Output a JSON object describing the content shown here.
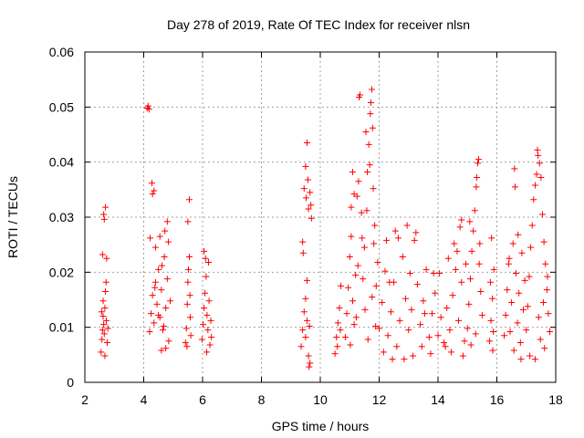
{
  "chart_data": {
    "type": "scatter",
    "title": "Day 278 of 2019, Rate Of TEC Index for receiver nlsn",
    "xlabel": "GPS time / hours",
    "ylabel": "ROTI / TECUs",
    "xlim": [
      2,
      18
    ],
    "ylim": [
      0,
      0.06
    ],
    "xticks": [
      2,
      4,
      6,
      8,
      10,
      12,
      14,
      16,
      18
    ],
    "yticks": [
      0,
      0.01,
      0.02,
      0.03,
      0.04,
      0.05,
      0.06
    ],
    "xtick_labels": [
      "2",
      "4",
      "6",
      "8",
      "10",
      "12",
      "14",
      "16",
      "18"
    ],
    "ytick_labels": [
      "0",
      "0.01",
      "0.02",
      "0.03",
      "0.04",
      "0.05",
      "0.06"
    ],
    "grid": true,
    "marker": "+",
    "marker_color": "#ff0000",
    "series": [
      {
        "name": "ROTI",
        "points": [
          [
            2.55,
            0.0055
          ],
          [
            2.58,
            0.0078
          ],
          [
            2.6,
            0.0095
          ],
          [
            2.62,
            0.012
          ],
          [
            2.64,
            0.0105
          ],
          [
            2.66,
            0.0088
          ],
          [
            2.68,
            0.0135
          ],
          [
            2.7,
            0.0165
          ],
          [
            2.72,
            0.0182
          ],
          [
            2.6,
            0.0232
          ],
          [
            2.64,
            0.0305
          ],
          [
            2.66,
            0.0296
          ],
          [
            2.7,
            0.0318
          ],
          [
            2.74,
            0.0225
          ],
          [
            2.76,
            0.0072
          ],
          [
            2.78,
            0.0098
          ],
          [
            2.62,
            0.0148
          ],
          [
            2.68,
            0.0048
          ],
          [
            2.73,
            0.0112
          ],
          [
            2.57,
            0.0128
          ],
          [
            4.12,
            0.0498
          ],
          [
            4.15,
            0.0502
          ],
          [
            4.18,
            0.0496
          ],
          [
            4.2,
            0.0092
          ],
          [
            4.25,
            0.0125
          ],
          [
            4.3,
            0.0158
          ],
          [
            4.35,
            0.0108
          ],
          [
            4.4,
            0.0182
          ],
          [
            4.45,
            0.0142
          ],
          [
            4.5,
            0.0205
          ],
          [
            4.55,
            0.0118
          ],
          [
            4.6,
            0.0168
          ],
          [
            4.65,
            0.0095
          ],
          [
            4.7,
            0.0228
          ],
          [
            4.75,
            0.0135
          ],
          [
            4.8,
            0.0188
          ],
          [
            4.85,
            0.0075
          ],
          [
            4.9,
            0.0148
          ],
          [
            4.3,
            0.0342
          ],
          [
            4.35,
            0.0348
          ],
          [
            4.28,
            0.0362
          ],
          [
            4.4,
            0.0245
          ],
          [
            4.55,
            0.0265
          ],
          [
            4.72,
            0.0275
          ],
          [
            4.8,
            0.0292
          ],
          [
            4.6,
            0.0058
          ],
          [
            4.75,
            0.0062
          ],
          [
            4.5,
            0.0122
          ],
          [
            4.38,
            0.0172
          ],
          [
            4.62,
            0.0212
          ],
          [
            4.68,
            0.0102
          ],
          [
            4.84,
            0.0255
          ],
          [
            4.22,
            0.0262
          ],
          [
            5.42,
            0.0072
          ],
          [
            5.45,
            0.0098
          ],
          [
            5.48,
            0.0142
          ],
          [
            5.5,
            0.0182
          ],
          [
            5.52,
            0.0205
          ],
          [
            5.55,
            0.0228
          ],
          [
            5.58,
            0.0118
          ],
          [
            5.6,
            0.0085
          ],
          [
            5.5,
            0.0292
          ],
          [
            5.55,
            0.0332
          ],
          [
            5.47,
            0.0065
          ],
          [
            5.57,
            0.0158
          ],
          [
            5.98,
            0.0078
          ],
          [
            6.02,
            0.0105
          ],
          [
            6.05,
            0.0135
          ],
          [
            6.08,
            0.0162
          ],
          [
            6.12,
            0.0192
          ],
          [
            6.15,
            0.0122
          ],
          [
            6.18,
            0.0095
          ],
          [
            6.22,
            0.0148
          ],
          [
            6.25,
            0.0068
          ],
          [
            6.28,
            0.0112
          ],
          [
            6.05,
            0.0238
          ],
          [
            6.1,
            0.0225
          ],
          [
            6.2,
            0.0218
          ],
          [
            6.3,
            0.0082
          ],
          [
            6.14,
            0.0055
          ],
          [
            9.35,
            0.0065
          ],
          [
            9.4,
            0.0095
          ],
          [
            9.45,
            0.0128
          ],
          [
            9.5,
            0.0082
          ],
          [
            9.55,
            0.0112
          ],
          [
            9.6,
            0.0048
          ],
          [
            9.65,
            0.0035
          ],
          [
            9.62,
            0.0028
          ],
          [
            9.5,
            0.0152
          ],
          [
            9.55,
            0.0185
          ],
          [
            9.4,
            0.0255
          ],
          [
            9.45,
            0.0352
          ],
          [
            9.5,
            0.0392
          ],
          [
            9.55,
            0.0435
          ],
          [
            9.58,
            0.0368
          ],
          [
            9.6,
            0.0315
          ],
          [
            9.65,
            0.0345
          ],
          [
            9.7,
            0.0298
          ],
          [
            9.52,
            0.0335
          ],
          [
            9.68,
            0.0322
          ],
          [
            9.42,
            0.0235
          ],
          [
            9.63,
            0.0102
          ],
          [
            10.5,
            0.0052
          ],
          [
            10.55,
            0.0082
          ],
          [
            10.6,
            0.0108
          ],
          [
            10.65,
            0.0135
          ],
          [
            10.7,
            0.0175
          ],
          [
            10.58,
            0.0065
          ],
          [
            10.68,
            0.0095
          ],
          [
            10.85,
            0.0082
          ],
          [
            10.9,
            0.0125
          ],
          [
            10.95,
            0.0172
          ],
          [
            11.0,
            0.0228
          ],
          [
            11.05,
            0.0265
          ],
          [
            11.1,
            0.0148
          ],
          [
            11.15,
            0.0105
          ],
          [
            11.2,
            0.0195
          ],
          [
            11.25,
            0.0338
          ],
          [
            11.3,
            0.0365
          ],
          [
            11.35,
            0.0522
          ],
          [
            11.32,
            0.0518
          ],
          [
            11.1,
            0.0382
          ],
          [
            11.15,
            0.0342
          ],
          [
            11.4,
            0.0308
          ],
          [
            11.45,
            0.0188
          ],
          [
            11.5,
            0.0245
          ],
          [
            11.55,
            0.0455
          ],
          [
            11.6,
            0.0382
          ],
          [
            11.65,
            0.0432
          ],
          [
            11.7,
            0.0488
          ],
          [
            11.75,
            0.0532
          ],
          [
            11.72,
            0.0508
          ],
          [
            11.78,
            0.0462
          ],
          [
            11.68,
            0.0395
          ],
          [
            11.8,
            0.0352
          ],
          [
            11.85,
            0.0285
          ],
          [
            11.9,
            0.0175
          ],
          [
            11.95,
            0.0218
          ],
          [
            11.58,
            0.0312
          ],
          [
            11.42,
            0.0262
          ],
          [
            11.22,
            0.0118
          ],
          [
            11.02,
            0.0068
          ],
          [
            11.62,
            0.0078
          ],
          [
            11.88,
            0.0102
          ],
          [
            11.52,
            0.0132
          ],
          [
            11.76,
            0.0155
          ],
          [
            11.05,
            0.0318
          ],
          [
            11.28,
            0.0212
          ],
          [
            11.82,
            0.0252
          ],
          [
            12.0,
            0.0098
          ],
          [
            12.1,
            0.0145
          ],
          [
            12.2,
            0.0202
          ],
          [
            12.3,
            0.0085
          ],
          [
            12.4,
            0.0128
          ],
          [
            12.5,
            0.0182
          ],
          [
            12.6,
            0.0065
          ],
          [
            12.7,
            0.0112
          ],
          [
            12.8,
            0.0228
          ],
          [
            12.9,
            0.0152
          ],
          [
            13.0,
            0.0095
          ],
          [
            13.1,
            0.0132
          ],
          [
            13.2,
            0.0258
          ],
          [
            13.25,
            0.0272
          ],
          [
            13.3,
            0.0178
          ],
          [
            13.4,
            0.0105
          ],
          [
            13.5,
            0.0148
          ],
          [
            13.6,
            0.0205
          ],
          [
            13.7,
            0.0082
          ],
          [
            13.8,
            0.0125
          ],
          [
            13.9,
            0.0162
          ],
          [
            12.25,
            0.0258
          ],
          [
            12.55,
            0.0275
          ],
          [
            12.65,
            0.0262
          ],
          [
            12.95,
            0.0285
          ],
          [
            13.15,
            0.0048
          ],
          [
            13.45,
            0.0065
          ],
          [
            13.75,
            0.0052
          ],
          [
            12.15,
            0.0055
          ],
          [
            12.85,
            0.0042
          ],
          [
            12.35,
            0.0182
          ],
          [
            13.05,
            0.0198
          ],
          [
            13.55,
            0.0125
          ],
          [
            13.85,
            0.0198
          ],
          [
            12.45,
            0.0042
          ],
          [
            14.0,
            0.0085
          ],
          [
            14.1,
            0.0118
          ],
          [
            14.2,
            0.0072
          ],
          [
            14.3,
            0.0135
          ],
          [
            14.4,
            0.0095
          ],
          [
            14.5,
            0.0158
          ],
          [
            14.6,
            0.0205
          ],
          [
            14.7,
            0.0112
          ],
          [
            14.8,
            0.0182
          ],
          [
            14.9,
            0.0075
          ],
          [
            14.35,
            0.0225
          ],
          [
            14.55,
            0.0252
          ],
          [
            14.75,
            0.0282
          ],
          [
            14.8,
            0.0295
          ],
          [
            14.65,
            0.0238
          ],
          [
            14.45,
            0.0055
          ],
          [
            14.85,
            0.0048
          ],
          [
            14.25,
            0.0065
          ],
          [
            14.95,
            0.0215
          ],
          [
            14.05,
            0.0198
          ],
          [
            15.0,
            0.0098
          ],
          [
            15.05,
            0.0142
          ],
          [
            15.1,
            0.0188
          ],
          [
            15.15,
            0.0238
          ],
          [
            15.2,
            0.0275
          ],
          [
            15.25,
            0.0312
          ],
          [
            15.3,
            0.0355
          ],
          [
            15.35,
            0.0398
          ],
          [
            15.38,
            0.0405
          ],
          [
            15.32,
            0.0372
          ],
          [
            15.4,
            0.0215
          ],
          [
            15.45,
            0.0165
          ],
          [
            15.5,
            0.0122
          ],
          [
            15.12,
            0.0068
          ],
          [
            15.28,
            0.0088
          ],
          [
            15.42,
            0.0252
          ],
          [
            15.08,
            0.0292
          ],
          [
            15.75,
            0.0075
          ],
          [
            15.8,
            0.0112
          ],
          [
            15.85,
            0.0152
          ],
          [
            15.9,
            0.0205
          ],
          [
            15.82,
            0.0262
          ],
          [
            15.88,
            0.0092
          ],
          [
            15.78,
            0.0182
          ],
          [
            15.86,
            0.0058
          ],
          [
            16.25,
            0.0085
          ],
          [
            16.3,
            0.0122
          ],
          [
            16.35,
            0.0168
          ],
          [
            16.4,
            0.0215
          ],
          [
            16.45,
            0.0092
          ],
          [
            16.5,
            0.0145
          ],
          [
            16.55,
            0.0252
          ],
          [
            16.6,
            0.0388
          ],
          [
            16.62,
            0.0355
          ],
          [
            16.65,
            0.0198
          ],
          [
            16.7,
            0.0108
          ],
          [
            16.75,
            0.0162
          ],
          [
            16.8,
            0.0072
          ],
          [
            16.85,
            0.0235
          ],
          [
            16.9,
            0.0132
          ],
          [
            16.95,
            0.0185
          ],
          [
            16.58,
            0.0058
          ],
          [
            16.82,
            0.0042
          ],
          [
            16.42,
            0.0225
          ],
          [
            16.72,
            0.0268
          ],
          [
            17.0,
            0.0095
          ],
          [
            17.05,
            0.0138
          ],
          [
            17.1,
            0.0192
          ],
          [
            17.15,
            0.0245
          ],
          [
            17.2,
            0.0285
          ],
          [
            17.25,
            0.0332
          ],
          [
            17.3,
            0.0358
          ],
          [
            17.35,
            0.0378
          ],
          [
            17.4,
            0.0412
          ],
          [
            17.45,
            0.0398
          ],
          [
            17.5,
            0.0372
          ],
          [
            17.38,
            0.0422
          ],
          [
            17.55,
            0.0305
          ],
          [
            17.6,
            0.0255
          ],
          [
            17.65,
            0.0215
          ],
          [
            17.7,
            0.0168
          ],
          [
            17.75,
            0.0125
          ],
          [
            17.8,
            0.0092
          ],
          [
            17.62,
            0.0062
          ],
          [
            17.48,
            0.0078
          ],
          [
            17.3,
            0.0042
          ],
          [
            17.12,
            0.0048
          ],
          [
            17.58,
            0.0145
          ],
          [
            17.72,
            0.0192
          ],
          [
            17.42,
            0.0118
          ]
        ]
      }
    ]
  }
}
